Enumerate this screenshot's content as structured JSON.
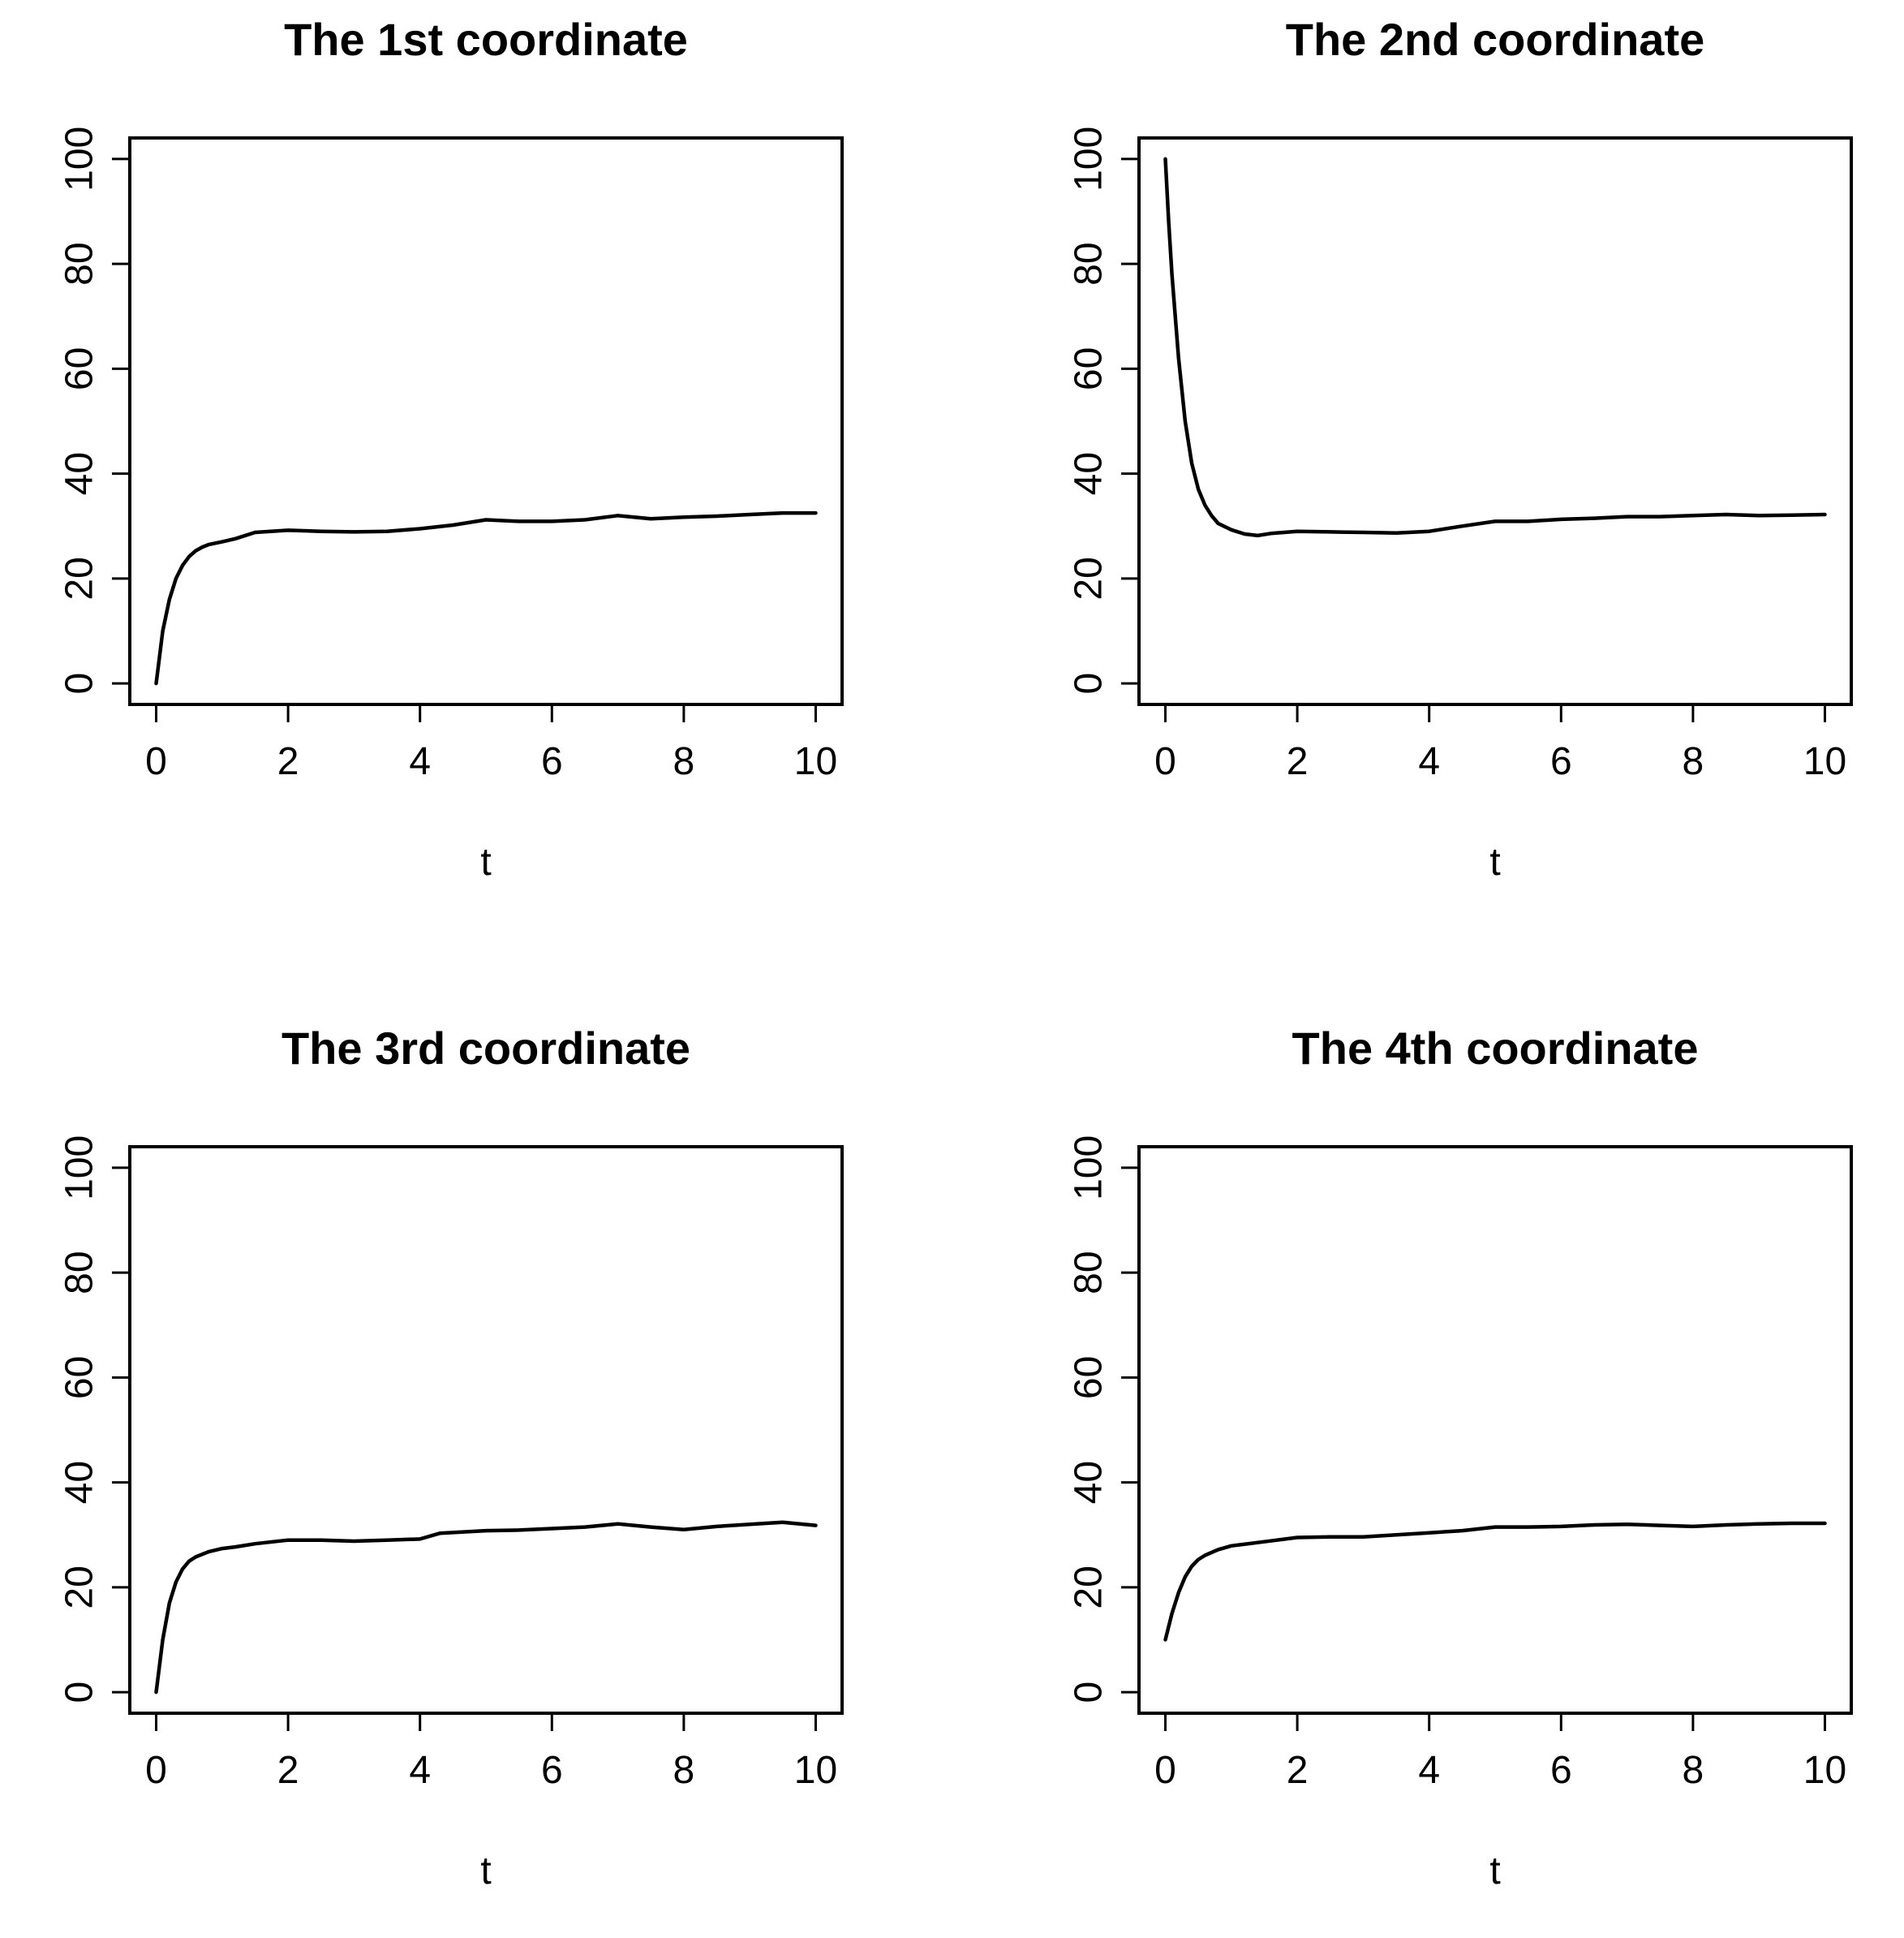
{
  "chart_data": [
    {
      "type": "line",
      "title": "The 1st coordinate",
      "xlabel": "t",
      "ylabel": "",
      "xlim": [
        0,
        10
      ],
      "ylim": [
        0,
        100
      ],
      "xticks": [
        "0",
        "2",
        "4",
        "6",
        "8",
        "10"
      ],
      "yticks": [
        "0",
        "20",
        "40",
        "60",
        "80",
        "100"
      ],
      "x": [
        0,
        0.1,
        0.2,
        0.3,
        0.4,
        0.5,
        0.6,
        0.7,
        0.8,
        1.0,
        1.2,
        1.5,
        2.0,
        2.5,
        3.0,
        3.5,
        4.0,
        4.5,
        5.0,
        5.5,
        6.0,
        6.5,
        7.0,
        7.5,
        8.0,
        8.5,
        9.0,
        9.5,
        10.0
      ],
      "values": [
        0,
        10,
        16,
        20,
        22.5,
        24.2,
        25.3,
        26.0,
        26.5,
        27.0,
        27.6,
        28.8,
        29.2,
        29.0,
        28.9,
        29.0,
        29.5,
        30.2,
        31.2,
        30.9,
        30.9,
        31.2,
        32.0,
        31.4,
        31.7,
        31.9,
        32.2,
        32.5,
        32.5
      ]
    },
    {
      "type": "line",
      "title": "The 2nd coordinate",
      "xlabel": "t",
      "ylabel": "",
      "xlim": [
        0,
        10
      ],
      "ylim": [
        0,
        100
      ],
      "xticks": [
        "0",
        "2",
        "4",
        "6",
        "8",
        "10"
      ],
      "yticks": [
        "0",
        "20",
        "40",
        "60",
        "80",
        "100"
      ],
      "x": [
        0,
        0.05,
        0.1,
        0.2,
        0.3,
        0.4,
        0.5,
        0.6,
        0.7,
        0.8,
        1.0,
        1.2,
        1.4,
        1.6,
        2.0,
        2.5,
        3.0,
        3.5,
        4.0,
        4.5,
        5.0,
        5.5,
        6.0,
        6.5,
        7.0,
        7.5,
        8.0,
        8.5,
        9.0,
        9.5,
        10.0
      ],
      "values": [
        100,
        88,
        78,
        62,
        50,
        42,
        37,
        34,
        32,
        30.5,
        29.3,
        28.5,
        28.2,
        28.6,
        29.0,
        28.9,
        28.8,
        28.7,
        29.0,
        30.0,
        30.9,
        30.9,
        31.3,
        31.5,
        31.8,
        31.8,
        32.0,
        32.2,
        32.0,
        32.1,
        32.2
      ]
    },
    {
      "type": "line",
      "title": "The 3rd coordinate",
      "xlabel": "t",
      "ylabel": "",
      "xlim": [
        0,
        10
      ],
      "ylim": [
        0,
        100
      ],
      "xticks": [
        "0",
        "2",
        "4",
        "6",
        "8",
        "10"
      ],
      "yticks": [
        "0",
        "20",
        "40",
        "60",
        "80",
        "100"
      ],
      "x": [
        0,
        0.1,
        0.2,
        0.3,
        0.4,
        0.5,
        0.6,
        0.8,
        1.0,
        1.2,
        1.5,
        2.0,
        2.5,
        3.0,
        3.5,
        4.0,
        4.3,
        5.0,
        5.5,
        6.0,
        6.5,
        7.0,
        7.5,
        8.0,
        8.5,
        9.0,
        9.5,
        10.0
      ],
      "values": [
        0,
        10,
        17,
        21,
        23.5,
        25.0,
        25.8,
        26.8,
        27.4,
        27.7,
        28.3,
        29.0,
        29.0,
        28.8,
        29.0,
        29.2,
        30.3,
        30.8,
        30.9,
        31.2,
        31.5,
        32.1,
        31.5,
        31.0,
        31.6,
        32.0,
        32.4,
        31.8
      ]
    },
    {
      "type": "line",
      "title": "The 4th coordinate",
      "xlabel": "t",
      "ylabel": "",
      "xlim": [
        0,
        10
      ],
      "ylim": [
        0,
        100
      ],
      "xticks": [
        "0",
        "2",
        "4",
        "6",
        "8",
        "10"
      ],
      "yticks": [
        "0",
        "20",
        "40",
        "60",
        "80",
        "100"
      ],
      "x": [
        0,
        0.1,
        0.2,
        0.3,
        0.4,
        0.5,
        0.6,
        0.8,
        1.0,
        1.5,
        2.0,
        2.5,
        3.0,
        3.5,
        4.0,
        4.5,
        5.0,
        5.5,
        6.0,
        6.5,
        7.0,
        7.5,
        8.0,
        8.5,
        9.0,
        9.5,
        10.0
      ],
      "values": [
        10,
        15,
        19,
        22,
        24,
        25.3,
        26.1,
        27.2,
        27.9,
        28.7,
        29.5,
        29.6,
        29.6,
        30.0,
        30.4,
        30.8,
        31.5,
        31.5,
        31.6,
        31.9,
        32.0,
        31.8,
        31.6,
        31.9,
        32.1,
        32.2,
        32.2
      ]
    }
  ]
}
